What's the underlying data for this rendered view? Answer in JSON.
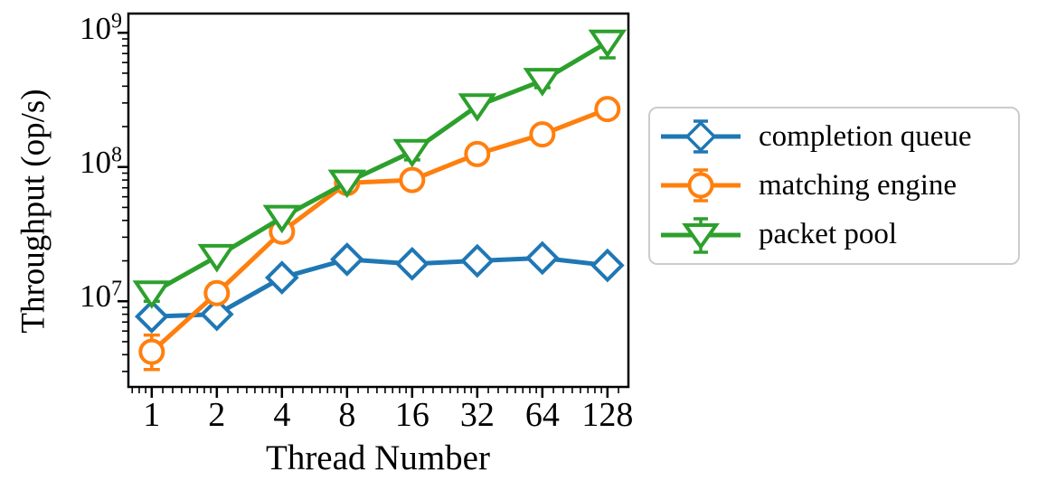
{
  "figure": {
    "background": "#ffffff"
  },
  "chart_data": {
    "type": "line",
    "title": "",
    "xlabel": "Thread Number",
    "ylabel": "Throughput (op/s)",
    "x_scale": "log2",
    "y_scale": "log10",
    "grid": false,
    "legend_position": "outside-right",
    "x": [
      1,
      2,
      4,
      8,
      16,
      32,
      64,
      128
    ],
    "x_tick_labels": [
      "1",
      "2",
      "4",
      "8",
      "16",
      "32",
      "64",
      "128"
    ],
    "y_ticks": [
      10000000,
      100000000,
      1000000000
    ],
    "y_axis": {
      "base": "10",
      "exponents": [
        "7",
        "8",
        "9"
      ]
    },
    "xlim": [
      0.78,
      160
    ],
    "ylim": [
      2300000,
      1390000000
    ],
    "axis_color": "#000000",
    "marker_face_color": "#ffffff",
    "series": [
      {
        "name": "completion queue",
        "color": "#1f77b4",
        "marker": "diamond",
        "values": [
          7700000,
          8000000,
          15000000,
          20500000,
          19000000,
          20000000,
          21000000,
          18500000
        ],
        "err_lo": [
          7700000,
          8000000,
          15000000,
          20500000,
          19000000,
          20000000,
          21000000,
          18500000
        ],
        "err_hi": [
          7700000,
          8000000,
          15000000,
          20500000,
          19000000,
          20000000,
          21000000,
          18500000
        ]
      },
      {
        "name": "matching engine",
        "color": "#ff7f0e",
        "marker": "circle",
        "values": [
          4200000,
          11500000,
          33000000,
          76000000,
          80000000,
          125000000,
          175000000,
          270000000
        ],
        "err_lo": [
          3100000,
          10500000,
          32000000,
          74000000,
          78000000,
          122000000,
          170000000,
          263000000
        ],
        "err_hi": [
          5600000,
          13500000,
          34000000,
          78000000,
          82000000,
          128000000,
          180000000,
          277000000
        ]
      },
      {
        "name": "packet pool",
        "color": "#2ca02c",
        "marker": "triangle-down",
        "values": [
          11500000,
          21500000,
          42000000,
          77000000,
          130000000,
          285000000,
          440000000,
          850000000
        ],
        "err_lo": [
          10000000,
          20500000,
          40000000,
          74000000,
          113000000,
          272000000,
          390000000,
          650000000
        ],
        "err_hi": [
          13500000,
          22500000,
          46000000,
          80000000,
          148000000,
          298000000,
          470000000,
          1000000000
        ]
      }
    ]
  }
}
